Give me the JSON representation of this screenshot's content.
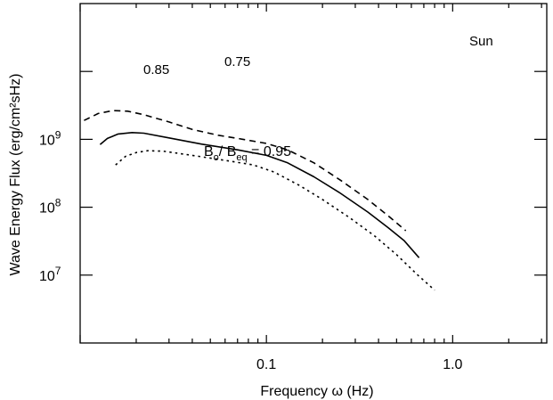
{
  "chart_data": {
    "type": "line",
    "title": "",
    "xlabel": "Frequency ω (Hz)",
    "ylabel": "Wave Energy Flux (erg/cm²sHz)",
    "xscale": "log",
    "yscale": "log",
    "xlim": [
      0.01,
      3.2
    ],
    "ylim": [
      1000000,
      100000000000
    ],
    "grid": false,
    "x_ticks": [
      {
        "value": 0.1,
        "label": "0.1"
      },
      {
        "value": 1.0,
        "label": "1.0"
      }
    ],
    "y_ticks": [
      {
        "value": 10000000,
        "base": "10",
        "exp": "7"
      },
      {
        "value": 100000000,
        "base": "10",
        "exp": "8"
      },
      {
        "value": 1000000000,
        "base": "10",
        "exp": "9"
      }
    ],
    "annotations": {
      "corner": "Sun",
      "ratio_label_b": "B",
      "ratio_label_o": "o",
      "ratio_label_slash": "/ B",
      "ratio_label_eq": "eq",
      "ratio_label_value": " = 0.95"
    },
    "series": [
      {
        "label": "0.75",
        "line_style": "dashed",
        "points": [
          [
            0.0105,
            1900000000
          ],
          [
            0.0125,
            2400000000
          ],
          [
            0.015,
            2650000000
          ],
          [
            0.018,
            2600000000
          ],
          [
            0.022,
            2300000000
          ],
          [
            0.03,
            1800000000
          ],
          [
            0.04,
            1400000000
          ],
          [
            0.055,
            1150000000
          ],
          [
            0.075,
            1000000000
          ],
          [
            0.1,
            870000000
          ],
          [
            0.13,
            700000000
          ],
          [
            0.18,
            450000000
          ],
          [
            0.25,
            250000000
          ],
          [
            0.35,
            130000000
          ],
          [
            0.45,
            75000000
          ],
          [
            0.56,
            45000000
          ]
        ]
      },
      {
        "label": "0.85",
        "line_style": "solid",
        "points": [
          [
            0.0128,
            840000000
          ],
          [
            0.014,
            1030000000
          ],
          [
            0.016,
            1200000000
          ],
          [
            0.019,
            1260000000
          ],
          [
            0.022,
            1230000000
          ],
          [
            0.03,
            1050000000
          ],
          [
            0.045,
            850000000
          ],
          [
            0.07,
            700000000
          ],
          [
            0.1,
            580000000
          ],
          [
            0.13,
            450000000
          ],
          [
            0.18,
            280000000
          ],
          [
            0.25,
            160000000
          ],
          [
            0.35,
            85000000
          ],
          [
            0.45,
            50000000
          ],
          [
            0.55,
            32000000
          ],
          [
            0.66,
            18000000
          ]
        ]
      },
      {
        "label": "",
        "line_style": "dotted",
        "points": [
          [
            0.0155,
            420000000
          ],
          [
            0.0175,
            560000000
          ],
          [
            0.02,
            640000000
          ],
          [
            0.023,
            680000000
          ],
          [
            0.028,
            670000000
          ],
          [
            0.04,
            580000000
          ],
          [
            0.06,
            490000000
          ],
          [
            0.085,
            420000000
          ],
          [
            0.11,
            330000000
          ],
          [
            0.15,
            210000000
          ],
          [
            0.2,
            130000000
          ],
          [
            0.28,
            70000000
          ],
          [
            0.38,
            38000000
          ],
          [
            0.5,
            20000000
          ],
          [
            0.65,
            10000000
          ],
          [
            0.8,
            6000000
          ]
        ]
      }
    ]
  }
}
